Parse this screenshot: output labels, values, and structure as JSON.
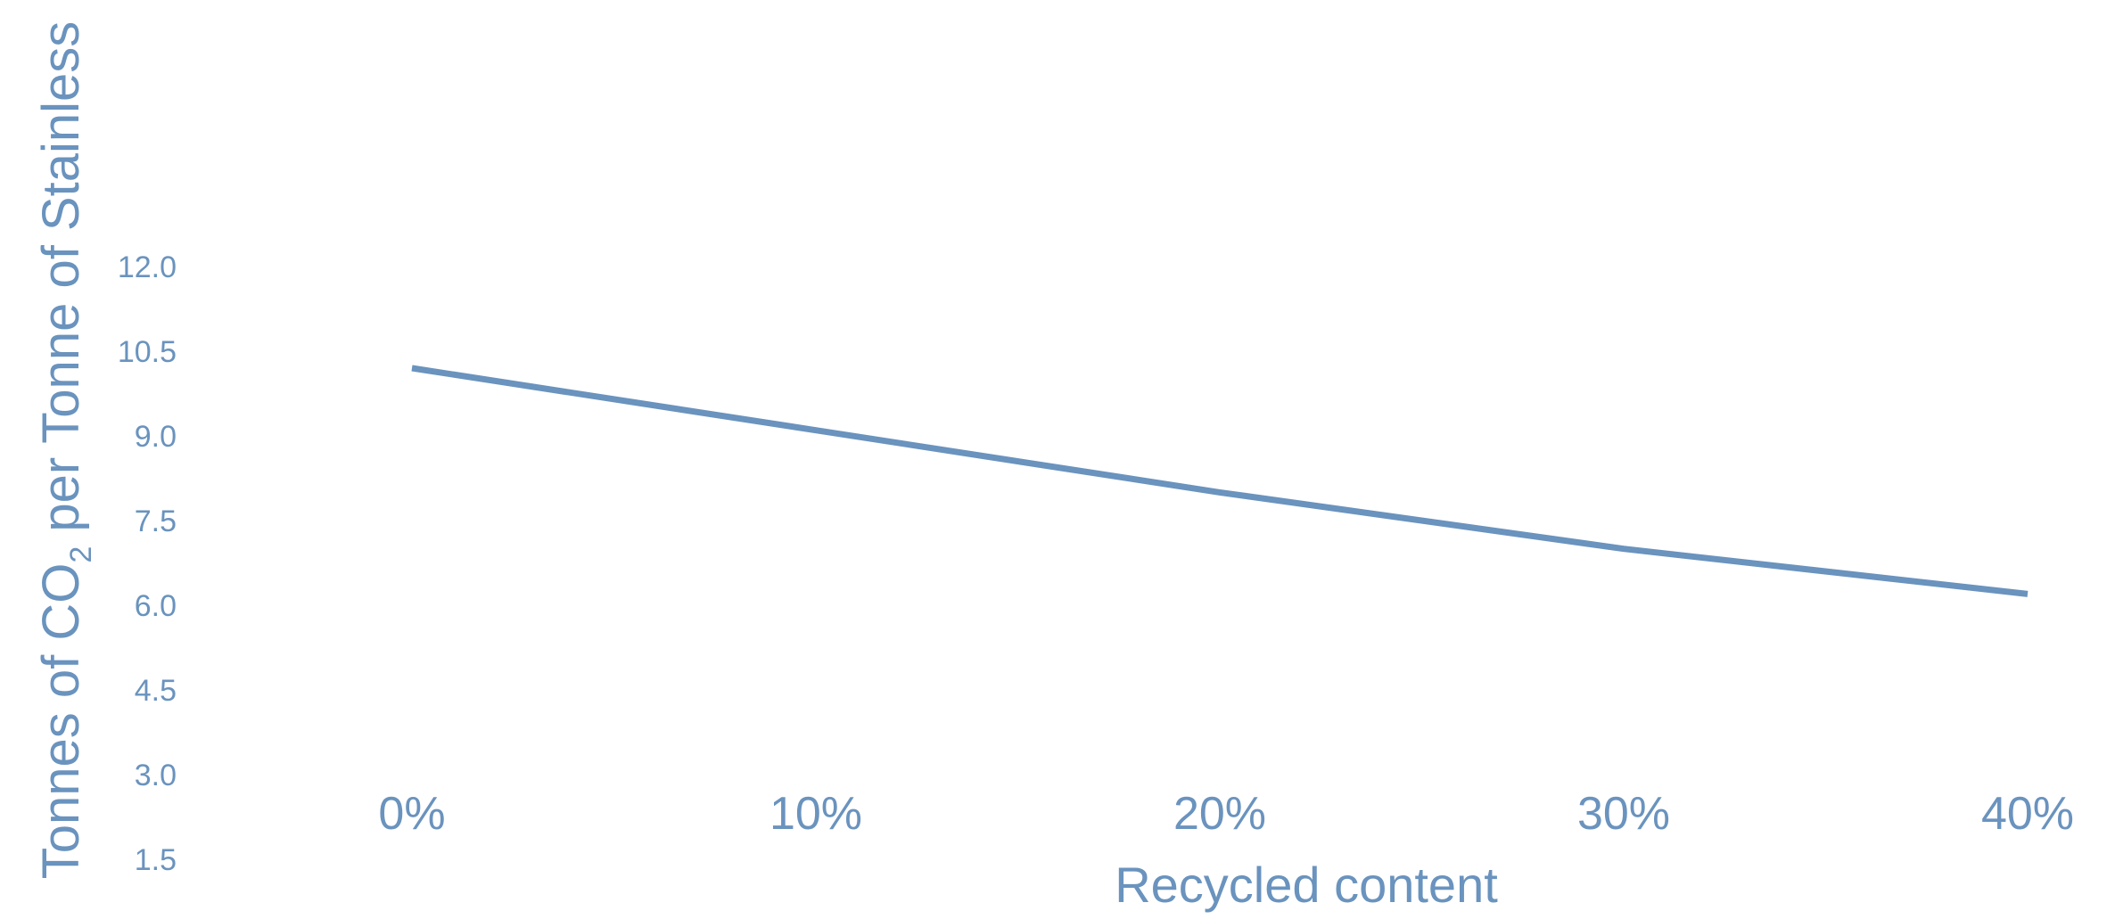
{
  "colors": {
    "series": "#6a93be",
    "text": "#6a93be",
    "background": "#ffffff"
  },
  "chart_data": {
    "type": "line",
    "title": "",
    "xlabel": "Recycled content",
    "ylabel": {
      "before": "Tonnes of CO",
      "subscript": "2",
      "after": " per Tonne of Stainless"
    },
    "x": [
      0,
      10,
      20,
      30,
      40
    ],
    "x_tick_labels": [
      "0%",
      "10%",
      "20%",
      "30%",
      "40%"
    ],
    "xlim": [
      0,
      40
    ],
    "y_ticks": [
      1.5,
      3.0,
      4.5,
      6.0,
      7.5,
      9.0,
      10.5,
      12.0
    ],
    "y_tick_labels": [
      "1.5",
      "3.0",
      "4.5",
      "6.0",
      "7.5",
      "9.0",
      "10.5",
      "12.0"
    ],
    "ylim": [
      0,
      13.5
    ],
    "grid": false,
    "legend": "none",
    "series": [
      {
        "values": [
          10.2,
          9.1,
          8.0,
          7.0,
          6.2
        ]
      }
    ]
  }
}
